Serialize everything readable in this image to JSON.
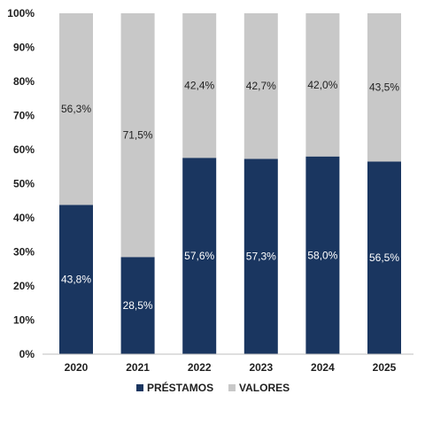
{
  "chart_data": {
    "type": "bar",
    "stacked": true,
    "categories": [
      "2020",
      "2021",
      "2022",
      "2023",
      "2024",
      "2025"
    ],
    "series": [
      {
        "name": "PRÉSTAMOS",
        "color": "#1a3660",
        "label_color": "#ffffff",
        "values": [
          43.8,
          28.5,
          57.6,
          57.3,
          58.0,
          56.5
        ],
        "labels": [
          "43,8%",
          "28,5%",
          "57,6%",
          "57,3%",
          "58,0%",
          "56,5%"
        ]
      },
      {
        "name": "VALORES",
        "color": "#c8c8c8",
        "label_color": "#1f1f1f",
        "values": [
          56.3,
          71.5,
          42.4,
          42.7,
          42.0,
          43.5
        ],
        "labels": [
          "56,3%",
          "71,5%",
          "42,4%",
          "42,7%",
          "42,0%",
          "43,5%"
        ]
      }
    ],
    "ylim": [
      0,
      100
    ],
    "yticks": [
      0,
      10,
      20,
      30,
      40,
      50,
      60,
      70,
      80,
      90,
      100
    ],
    "ytick_labels": [
      "0%",
      "10%",
      "20%",
      "30%",
      "40%",
      "50%",
      "60%",
      "70%",
      "80%",
      "90%",
      "100%"
    ],
    "grid": false,
    "legend": "bottom"
  }
}
